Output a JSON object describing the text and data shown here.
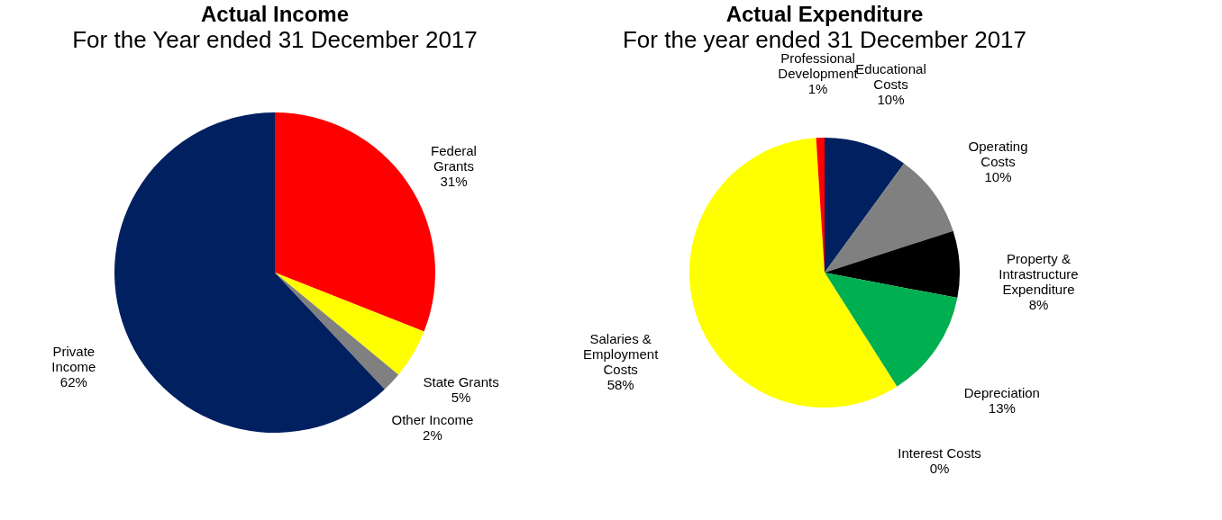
{
  "chart_data": [
    {
      "type": "pie",
      "title": "Actual Income",
      "subtitle": "For the Year ended 31 December 2017",
      "categories": [
        "Federal\nGrants",
        "State Grants",
        "Other Income",
        "Private\nIncome"
      ],
      "values": [
        31,
        5,
        2,
        62
      ],
      "value_labels": [
        "31%",
        "5%",
        "2%",
        "62%"
      ],
      "colors": [
        "#ff0000",
        "#ffff00",
        "#808080",
        "#002060"
      ],
      "legend": false
    },
    {
      "type": "pie",
      "title": "Actual Expenditure",
      "subtitle": "For the year ended 31 December 2017",
      "categories": [
        "Educational\nCosts",
        "Operating\nCosts",
        "Property &\nIntrastructure\nExpenditure",
        "Depreciation",
        "Interest Costs",
        "Salaries &\nEmployment\nCosts",
        "Professional\nDevelopment"
      ],
      "values": [
        10,
        10,
        8,
        13,
        0,
        58,
        1
      ],
      "value_labels": [
        "10%",
        "10%",
        "8%",
        "13%",
        "0%",
        "58%",
        "1%"
      ],
      "colors": [
        "#002060",
        "#808080",
        "#000000",
        "#00b050",
        "#4472c4",
        "#ffff00",
        "#ff0000"
      ],
      "legend": false
    }
  ]
}
